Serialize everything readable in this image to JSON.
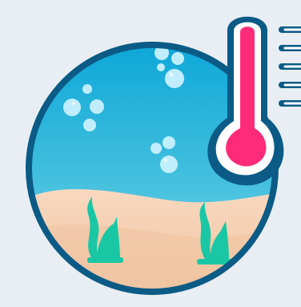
{
  "illustration": {
    "subject": "ocean-temperature-illustration",
    "icons": [
      "ocean-scene-icon",
      "thermometer-icon",
      "bubble-icon",
      "seaweed-icon"
    ]
  },
  "colors": {
    "background": "#e8eef4",
    "circle_outline": "#0b5b86",
    "water_top": "#0ea7d8",
    "water_bottom": "#6fd2e6",
    "sand": "#f3c8a6",
    "sand_light": "#f7d8bf",
    "seaweed": "#19c7a5",
    "bubble": "#c9f1ff",
    "thermometer_outline": "#0b5b86",
    "thermometer_red": "#ff2b79",
    "thermometer_white": "#ffffff"
  }
}
